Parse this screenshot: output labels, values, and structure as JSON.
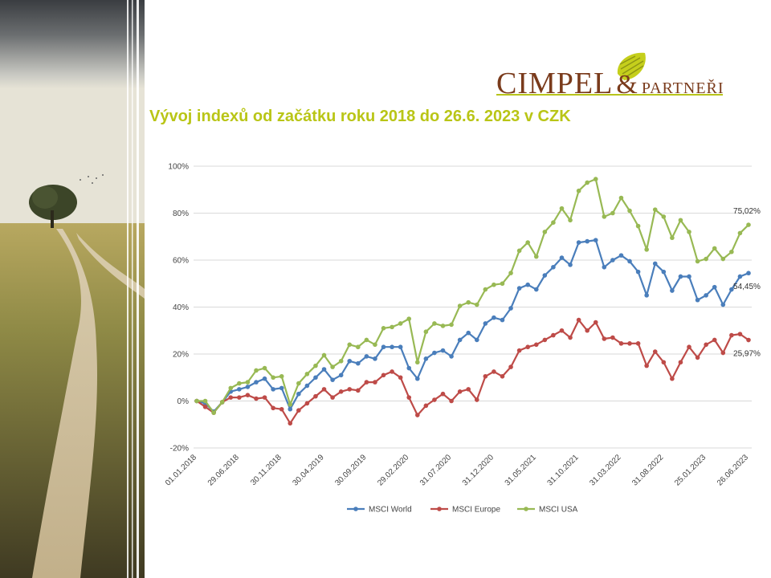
{
  "title": "Vývoj indexů od začátku roku 2018 do 26.6. 2023 v CZK",
  "logo": {
    "main": "CIMPEL",
    "amp": "&",
    "sub": "PARTNEŘI"
  },
  "chart_data": {
    "type": "line",
    "title": "Vývoj indexů od začátku roku 2018 do 26.6. 2023 v CZK",
    "xlabel": "",
    "ylabel": "",
    "ylim": [
      -20,
      100
    ],
    "y_ticks": [
      -20,
      0,
      20,
      40,
      60,
      80,
      100
    ],
    "y_tick_labels": [
      "-20%",
      "0%",
      "20%",
      "40%",
      "60%",
      "80%",
      "100%"
    ],
    "x_tick_labels": [
      "01.01.2018",
      "29.06.2018",
      "30.11.2018",
      "30.04.2019",
      "30.09.2019",
      "29.02.2020",
      "31.07.2020",
      "31.12.2020",
      "31.05.2021",
      "31.10.2021",
      "31.03.2022",
      "31.08.2022",
      "25.01.2023",
      "26.06.2023"
    ],
    "x_tick_index": [
      0,
      5,
      10,
      15,
      20,
      25,
      30,
      35,
      40,
      45,
      50,
      55,
      60,
      65
    ],
    "grid": "horizontal",
    "legend": "bottom",
    "series": [
      {
        "name": "MSCI World",
        "color": "#4a7ebb",
        "values": [
          0,
          -1,
          -4.5,
          -0.5,
          4,
          5,
          6,
          8,
          9.5,
          5,
          5.5,
          -3.5,
          3,
          6.5,
          10,
          13.5,
          9,
          11,
          17,
          16,
          19,
          18,
          23,
          23,
          23,
          14,
          9.5,
          18,
          20.5,
          21.5,
          19,
          26,
          29,
          26,
          33,
          35.5,
          34.5,
          39.5,
          48,
          49.5,
          47.5,
          53.5,
          57,
          61,
          58,
          67.5,
          68,
          68.5,
          57,
          60,
          62,
          59.5,
          55,
          45,
          58.5,
          55,
          47,
          53,
          53,
          43,
          45,
          48.5,
          41,
          47.5,
          53,
          54.45
        ]
      },
      {
        "name": "MSCI Europe",
        "color": "#be4b48",
        "values": [
          0,
          -2.5,
          -5,
          -0.5,
          1.5,
          1.5,
          2.5,
          1,
          1.5,
          -3,
          -3.5,
          -9.5,
          -4,
          -1,
          2,
          5,
          1.5,
          4,
          5,
          4.5,
          8,
          8,
          11,
          12.5,
          10,
          1.5,
          -6,
          -2,
          0.5,
          3,
          0,
          4,
          5,
          0.5,
          10.5,
          12.5,
          10.5,
          14.5,
          21.5,
          23,
          24,
          26,
          28,
          30,
          27,
          34.5,
          30,
          33.5,
          26.5,
          27,
          24.5,
          24.5,
          24.5,
          15,
          21,
          16.5,
          9.5,
          16.5,
          23,
          18.5,
          24,
          26,
          20.5,
          28,
          28.5,
          25.97
        ]
      },
      {
        "name": "MSCI USA",
        "color": "#98b954",
        "values": [
          0,
          0,
          -5,
          -0.5,
          5.5,
          7.5,
          8,
          13,
          14,
          10,
          10.5,
          -1.5,
          7.5,
          11.5,
          15,
          19.5,
          14.5,
          17,
          24,
          23,
          26,
          24,
          31,
          31.5,
          33,
          35,
          16.5,
          29.5,
          33,
          32,
          32.5,
          40.5,
          42,
          41,
          47.5,
          49.5,
          50,
          54.5,
          64,
          67.5,
          61.5,
          72,
          76,
          82,
          77,
          89.5,
          93,
          94.5,
          78.5,
          80,
          86.5,
          81,
          74.5,
          64.5,
          81.5,
          78.5,
          69.5,
          77,
          72,
          59.5,
          60.5,
          65,
          60.5,
          63.5,
          71.5,
          75.02
        ]
      }
    ],
    "end_labels": [
      "54,45%",
      "25,97%",
      "75,02%"
    ]
  }
}
